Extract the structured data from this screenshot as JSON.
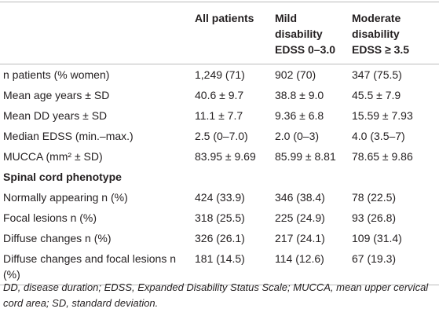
{
  "table": {
    "columns": [
      [
        "All patients"
      ],
      [
        "Mild disability",
        "EDSS 0–3.0"
      ],
      [
        "Moderate disability",
        "EDSS ≥ 3.5"
      ]
    ],
    "rows": [
      [
        "n patients (% women)",
        "1,249 (71)",
        "902 (70)",
        "347 (75.5)"
      ],
      [
        "Mean age years ± SD",
        "40.6 ± 9.7",
        "38.8 ± 9.0",
        "45.5 ± 7.9"
      ],
      [
        "Mean DD years ± SD",
        "11.1 ± 7.7",
        "9.36 ± 6.8",
        "15.59 ± 7.93"
      ],
      [
        "Median EDSS (min.–max.)",
        "2.5 (0–7.0)",
        "2.0 (0–3)",
        "4.0 (3.5–7)"
      ],
      [
        "MUCCA (mm² ± SD)",
        "83.95 ± 9.69",
        "85.99 ± 8.81",
        "78.65 ± 9.86"
      ]
    ],
    "section": "Spinal cord phenotype",
    "section_rows": [
      [
        "Normally appearing n (%)",
        "424 (33.9)",
        "346 (38.4)",
        "78 (22.5)"
      ],
      [
        "Focal lesions n (%)",
        "318 (25.5)",
        "225 (24.9)",
        "93 (26.8)"
      ],
      [
        "Diffuse changes n (%)",
        "326 (26.1)",
        "217 (24.1)",
        "109 (31.4)"
      ],
      [
        "Diffuse changes and focal lesions n (%)",
        "181 (14.5)",
        "114 (12.6)",
        "67 (19.3)"
      ]
    ],
    "footnote": "DD, disease duration; EDSS, Expanded Disability Status Scale; MUCCA, mean upper cervical cord area; SD, standard deviation."
  }
}
